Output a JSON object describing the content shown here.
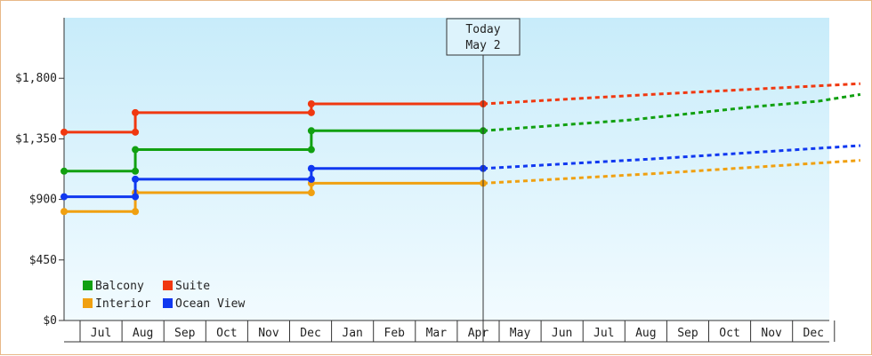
{
  "chart_data": {
    "type": "line",
    "title": "",
    "xlabel": "",
    "ylabel": "",
    "ylim": [
      0,
      2250
    ],
    "y_ticks": [
      {
        "value": 0,
        "label": "$0"
      },
      {
        "value": 450,
        "label": "$450"
      },
      {
        "value": 900,
        "label": "$900"
      },
      {
        "value": 1350,
        "label": "$1,350"
      },
      {
        "value": 1800,
        "label": "$1,800"
      }
    ],
    "x_months": [
      "Jul",
      "Aug",
      "Sep",
      "Oct",
      "Nov",
      "Dec",
      "Jan",
      "Feb",
      "Mar",
      "Apr",
      "May",
      "Jun",
      "Jul",
      "Aug",
      "Sep",
      "Oct",
      "Nov",
      "Dec"
    ],
    "today": {
      "line1": "Today",
      "line2": "May 2",
      "x": 10.0
    },
    "legend": {
      "position": "bottom-left"
    },
    "series": [
      {
        "name": "Balcony",
        "color": "#11a011",
        "history": [
          [
            0,
            1110
          ],
          [
            1.7,
            1110
          ],
          [
            1.7,
            1270
          ],
          [
            5.9,
            1270
          ],
          [
            5.9,
            1410
          ],
          [
            10.0,
            1410
          ]
        ],
        "forecast": [
          [
            10.0,
            1410
          ],
          [
            13.5,
            1490
          ],
          [
            16.5,
            1590
          ],
          [
            18.0,
            1630
          ],
          [
            19.0,
            1680
          ]
        ]
      },
      {
        "name": "Suite",
        "color": "#f03810",
        "history": [
          [
            0,
            1400
          ],
          [
            1.7,
            1400
          ],
          [
            1.7,
            1545
          ],
          [
            5.9,
            1545
          ],
          [
            5.9,
            1610
          ],
          [
            10.0,
            1610
          ]
        ],
        "forecast": [
          [
            10.0,
            1610
          ],
          [
            14.0,
            1680
          ],
          [
            19.0,
            1760
          ]
        ]
      },
      {
        "name": "Interior",
        "color": "#f0a010",
        "history": [
          [
            0,
            810
          ],
          [
            1.7,
            810
          ],
          [
            1.7,
            950
          ],
          [
            5.9,
            950
          ],
          [
            5.9,
            1020
          ],
          [
            10.0,
            1020
          ]
        ],
        "forecast": [
          [
            10.0,
            1020
          ],
          [
            14.0,
            1090
          ],
          [
            19.0,
            1190
          ]
        ]
      },
      {
        "name": "Ocean View",
        "color": "#1038f0",
        "history": [
          [
            0,
            920
          ],
          [
            1.7,
            920
          ],
          [
            1.7,
            1050
          ],
          [
            5.9,
            1050
          ],
          [
            5.9,
            1130
          ],
          [
            10.0,
            1130
          ]
        ],
        "forecast": [
          [
            10.0,
            1130
          ],
          [
            14.0,
            1200
          ],
          [
            19.0,
            1300
          ]
        ]
      }
    ]
  }
}
